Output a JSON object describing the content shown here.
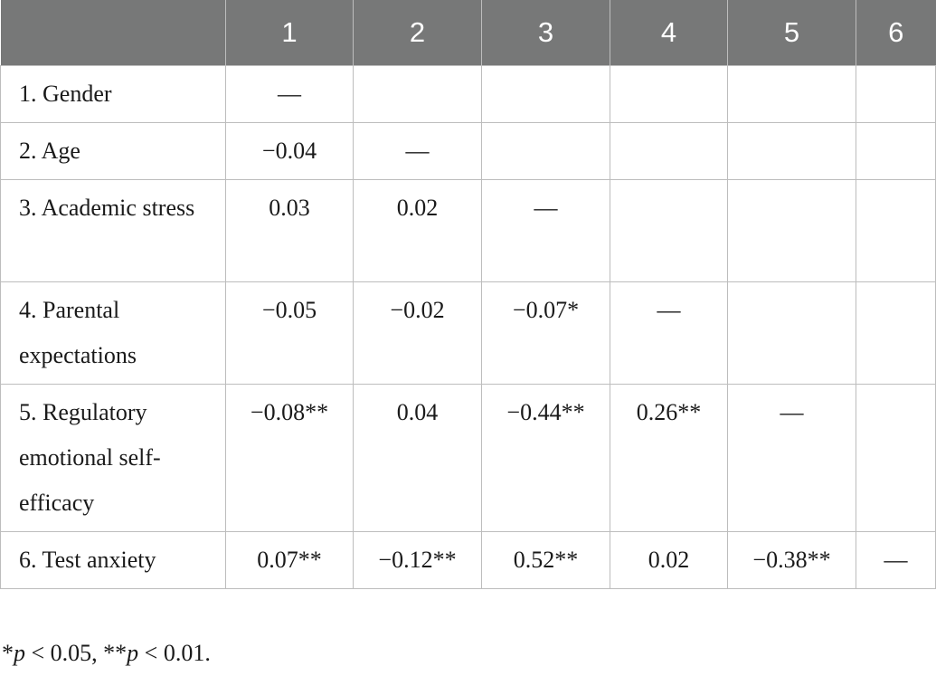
{
  "table": {
    "header": [
      "",
      "1",
      "2",
      "3",
      "4",
      "5",
      "6"
    ],
    "rows": [
      {
        "label": "1. Gender",
        "cells": [
          "—",
          "",
          "",
          "",
          "",
          ""
        ]
      },
      {
        "label": "2. Age",
        "cells": [
          "−0.04",
          "—",
          "",
          "",
          "",
          ""
        ]
      },
      {
        "label": "3. Academic stress",
        "cells": [
          "0.03",
          "0.02",
          "—",
          "",
          "",
          ""
        ]
      },
      {
        "label": "4. Parental expectations",
        "cells": [
          "−0.05",
          "−0.02",
          "−0.07*",
          "—",
          "",
          ""
        ]
      },
      {
        "label": "5. Regulatory emotional self-efficacy",
        "cells": [
          "−0.08**",
          "0.04",
          "−0.44**",
          "0.26**",
          "—",
          ""
        ]
      },
      {
        "label": "6. Test anxiety",
        "cells": [
          "0.07**",
          "−0.12**",
          "0.52**",
          "0.02",
          "−0.38**",
          "—"
        ]
      }
    ]
  },
  "note": {
    "star1": "*",
    "p1": "p",
    "cond1": " < 0.05, ",
    "star2": "**",
    "p2": "p",
    "cond2": " < 0.01."
  }
}
